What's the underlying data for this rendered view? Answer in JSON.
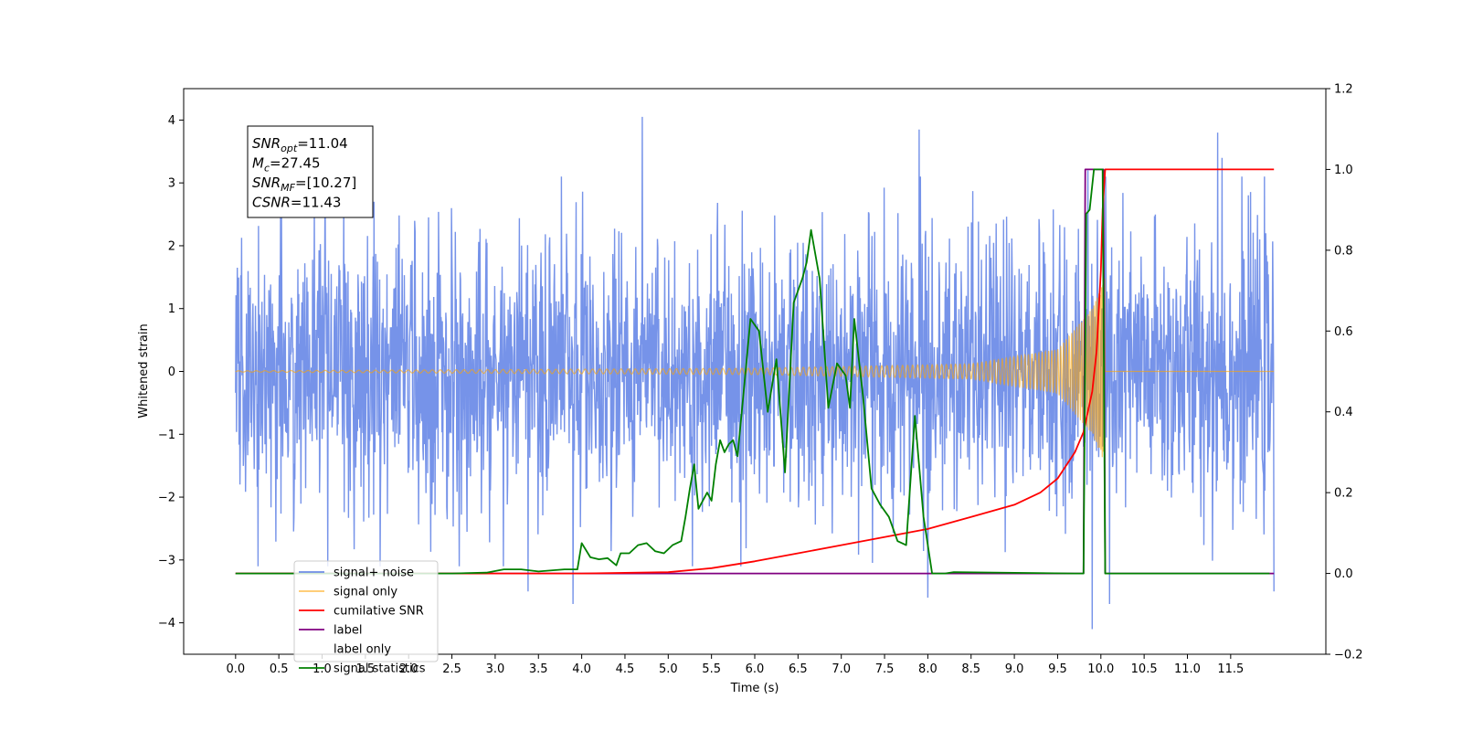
{
  "chart_data": {
    "type": "line",
    "xlabel": "Time (s)",
    "ylabel": "Whitened strain",
    "xlim": [
      -0.6,
      12.6
    ],
    "ylim": [
      -4.5,
      4.5
    ],
    "y2lim": [
      -0.2,
      1.2
    ],
    "grid": false,
    "legend_position": "lower-left",
    "x_ticks": [
      "0.0",
      "0.5",
      "1.0",
      "1.5",
      "2.0",
      "2.5",
      "3.0",
      "3.5",
      "4.0",
      "4.5",
      "5.0",
      "5.5",
      "6.0",
      "6.5",
      "7.0",
      "7.5",
      "8.0",
      "8.5",
      "9.0",
      "9.5",
      "10.0",
      "10.5",
      "11.0",
      "11.5"
    ],
    "y_ticks": [
      "4",
      "3",
      "2",
      "1",
      "0",
      "−1",
      "−2",
      "−3",
      "−4"
    ],
    "y2_ticks": [
      "1.2",
      "1.0",
      "0.8",
      "0.6",
      "0.4",
      "0.2",
      "0.0",
      "−0.2"
    ],
    "annotation": {
      "lines": [
        {
          "base": "SNR",
          "sub": "opt",
          "value": "=11.04"
        },
        {
          "base": "M",
          "sub": "c",
          "value": "=27.45"
        },
        {
          "base": "SNR",
          "sub": "MF",
          "value": "=[10.27]"
        },
        {
          "base": "CSNR",
          "sub": "",
          "value": "=11.43"
        }
      ]
    },
    "series": [
      {
        "name": "signal+ noise",
        "color": "#4169e1",
        "axis": "left",
        "x_range": [
          0.0,
          12.0
        ],
        "envelope": 1.1,
        "extreme_samples": [
          [
            0.02,
            1.65
          ],
          [
            0.05,
            -1.8
          ],
          [
            1.6,
            2.7
          ],
          [
            3.38,
            -3.5
          ],
          [
            3.9,
            -3.7
          ],
          [
            4.7,
            4.05
          ],
          [
            7.9,
            3.85
          ],
          [
            8.0,
            -3.6
          ],
          [
            9.85,
            3.2
          ],
          [
            9.9,
            -4.1
          ],
          [
            10.1,
            -3.7
          ],
          [
            11.35,
            3.8
          ],
          [
            11.4,
            3.4
          ],
          [
            12.0,
            -3.5
          ]
        ]
      },
      {
        "name": "signal only",
        "color": "#ffa500",
        "axis": "left",
        "x_range": [
          0.0,
          12.0
        ],
        "merger_time": 10.05,
        "peak_amplitude": 1.5,
        "amplitude_samples": [
          [
            0.0,
            0.01
          ],
          [
            6.0,
            0.05
          ],
          [
            8.5,
            0.12
          ],
          [
            9.5,
            0.35
          ],
          [
            9.9,
            1.0
          ],
          [
            10.05,
            1.5
          ],
          [
            10.06,
            0.0
          ],
          [
            12.0,
            0.0
          ]
        ]
      },
      {
        "name": "cumilative SNR",
        "color": "#ff0000",
        "axis": "right",
        "x": [
          0.0,
          4.0,
          5.0,
          5.5,
          6.0,
          6.5,
          7.0,
          7.5,
          8.0,
          8.5,
          9.0,
          9.3,
          9.5,
          9.7,
          9.8,
          9.9,
          9.95,
          10.0,
          10.02,
          10.05,
          12.0
        ],
        "y": [
          0.0,
          0.0,
          0.003,
          0.013,
          0.03,
          0.05,
          0.07,
          0.09,
          0.11,
          0.14,
          0.17,
          0.2,
          0.235,
          0.3,
          0.35,
          0.45,
          0.55,
          0.75,
          0.9,
          1.0,
          1.0
        ]
      },
      {
        "name": "label",
        "color": "#800080",
        "axis": "right",
        "x": [
          0.0,
          9.8,
          9.82,
          10.03,
          10.05,
          12.0
        ],
        "y": [
          0.0,
          0.0,
          1.0,
          1.0,
          0.0,
          0.0
        ]
      },
      {
        "name": "label only",
        "color": "#d8d8d8",
        "axis": "right",
        "x": [],
        "y": []
      },
      {
        "name": "signal statistics",
        "color": "#008000",
        "axis": "right",
        "x": [
          0.0,
          2.5,
          2.9,
          3.1,
          3.3,
          3.5,
          3.8,
          3.95,
          4.0,
          4.1,
          4.2,
          4.3,
          4.4,
          4.45,
          4.55,
          4.65,
          4.75,
          4.85,
          4.95,
          5.05,
          5.15,
          5.2,
          5.25,
          5.3,
          5.35,
          5.45,
          5.5,
          5.55,
          5.6,
          5.65,
          5.7,
          5.75,
          5.8,
          5.85,
          5.95,
          6.05,
          6.15,
          6.25,
          6.35,
          6.45,
          6.55,
          6.6,
          6.65,
          6.75,
          6.85,
          6.95,
          7.05,
          7.1,
          7.15,
          7.25,
          7.35,
          7.45,
          7.55,
          7.65,
          7.75,
          7.85,
          7.95,
          8.05,
          8.2,
          8.3,
          9.7,
          9.8,
          9.83,
          9.87,
          9.92,
          10.02,
          10.05,
          10.07,
          11.95
        ],
        "y": [
          0.0,
          0.0,
          0.002,
          0.01,
          0.01,
          0.005,
          0.01,
          0.01,
          0.075,
          0.04,
          0.035,
          0.038,
          0.02,
          0.05,
          0.05,
          0.07,
          0.075,
          0.055,
          0.05,
          0.07,
          0.08,
          0.14,
          0.21,
          0.27,
          0.16,
          0.2,
          0.18,
          0.27,
          0.33,
          0.3,
          0.32,
          0.33,
          0.29,
          0.4,
          0.63,
          0.6,
          0.4,
          0.53,
          0.25,
          0.67,
          0.73,
          0.77,
          0.85,
          0.73,
          0.41,
          0.52,
          0.49,
          0.41,
          0.63,
          0.44,
          0.21,
          0.17,
          0.14,
          0.08,
          0.07,
          0.39,
          0.14,
          0.0,
          0.0,
          0.003,
          0.0,
          0.0,
          0.89,
          0.9,
          1.0,
          1.0,
          0.0,
          0.0,
          0.0
        ]
      }
    ]
  }
}
